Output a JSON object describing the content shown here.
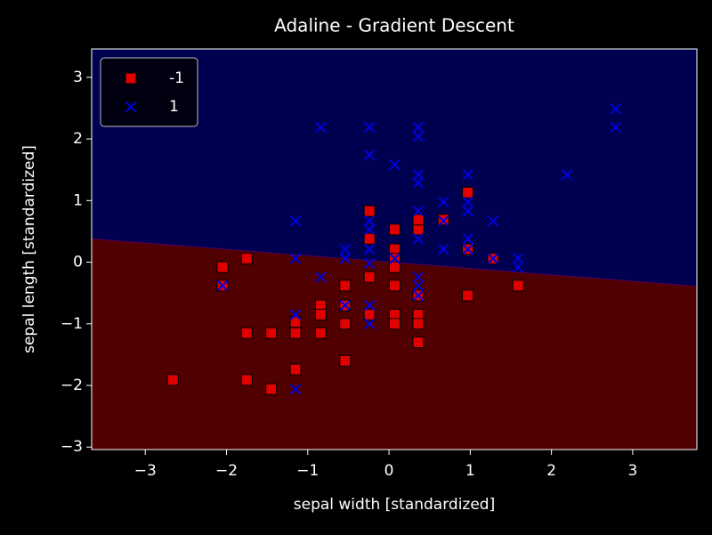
{
  "chart_data": {
    "type": "scatter",
    "title": "Adaline - Gradient Descent",
    "x_label": "sepal width [standardized]",
    "y_label": "sepal length [standardized]",
    "xlim": [
      -3.66,
      3.79
    ],
    "ylim": [
      -3.04,
      3.46
    ],
    "xticks": [
      {
        "value": -3,
        "label": "−3"
      },
      {
        "value": -2,
        "label": "−2"
      },
      {
        "value": -1,
        "label": "−1"
      },
      0,
      1,
      2,
      3
    ],
    "yticks": [
      {
        "value": -3,
        "label": "−3"
      },
      {
        "value": -2,
        "label": "−2"
      },
      {
        "value": -1,
        "label": "−1"
      },
      0,
      1,
      2,
      3
    ],
    "legend": "upper left",
    "decision_boundary": {
      "x": [
        -3.66,
        3.79
      ],
      "y": [
        0.38,
        -0.39
      ],
      "colors": [
        "#500000",
        "#000050"
      ]
    },
    "series": [
      {
        "name": "-1",
        "color": "#e00000",
        "marker": "s",
        "x": [
          -2.66,
          -2.05,
          -1.75,
          -1.75,
          -1.75,
          -1.45,
          -1.45,
          -1.15,
          -1.15,
          -1.15,
          -0.84,
          -0.84,
          -0.84,
          -0.54,
          -0.54,
          -0.54,
          -0.54,
          -0.24,
          -0.24,
          -0.24,
          -0.24,
          0.07,
          0.07,
          0.07,
          0.07,
          0.07,
          0.07,
          0.07,
          0.36,
          0.36,
          0.36,
          0.36,
          0.36,
          0.36,
          0.67,
          0.97,
          0.97,
          0.97,
          1.28,
          1.59,
          -2.05
        ],
        "values": [
          -1.91,
          -0.08,
          0.06,
          -1.15,
          -1.91,
          -1.15,
          -2.06,
          -1.15,
          -1.74,
          -0.97,
          -0.7,
          -0.85,
          -1.15,
          -0.38,
          -0.7,
          -1.0,
          -1.6,
          0.83,
          0.38,
          -0.24,
          -0.85,
          0.53,
          0.21,
          0.06,
          -0.08,
          -0.38,
          -0.85,
          -1.0,
          0.53,
          0.69,
          -0.54,
          -0.85,
          -1.0,
          -1.3,
          0.69,
          1.13,
          0.21,
          -0.54,
          0.06,
          -0.38,
          -0.38
        ]
      },
      {
        "name": "1",
        "color": "#0000e0",
        "marker": "x",
        "x": [
          -2.05,
          -1.15,
          -1.15,
          -1.15,
          -1.15,
          -0.84,
          -0.84,
          -0.54,
          -0.54,
          -0.54,
          -0.24,
          -0.24,
          -0.24,
          -0.24,
          -0.24,
          -0.24,
          -0.24,
          -0.24,
          0.07,
          0.07,
          0.36,
          0.36,
          0.36,
          0.36,
          0.36,
          0.36,
          0.36,
          0.36,
          0.36,
          0.67,
          0.67,
          0.67,
          0.97,
          0.97,
          0.97,
          0.97,
          0.97,
          1.28,
          1.28,
          1.59,
          1.59,
          2.19,
          2.79,
          2.79
        ],
        "values": [
          -0.38,
          0.67,
          0.06,
          -0.85,
          -2.06,
          2.19,
          -0.24,
          0.21,
          0.06,
          -0.7,
          2.19,
          1.74,
          0.67,
          0.53,
          0.21,
          -0.02,
          -0.7,
          -1.0,
          1.58,
          0.06,
          2.19,
          2.04,
          1.42,
          1.29,
          0.83,
          0.38,
          -0.24,
          -0.38,
          -0.54,
          0.98,
          0.67,
          0.21,
          1.42,
          0.98,
          0.83,
          0.38,
          0.21,
          0.67,
          0.06,
          0.06,
          -0.08,
          1.42,
          2.49,
          2.19
        ]
      }
    ]
  }
}
